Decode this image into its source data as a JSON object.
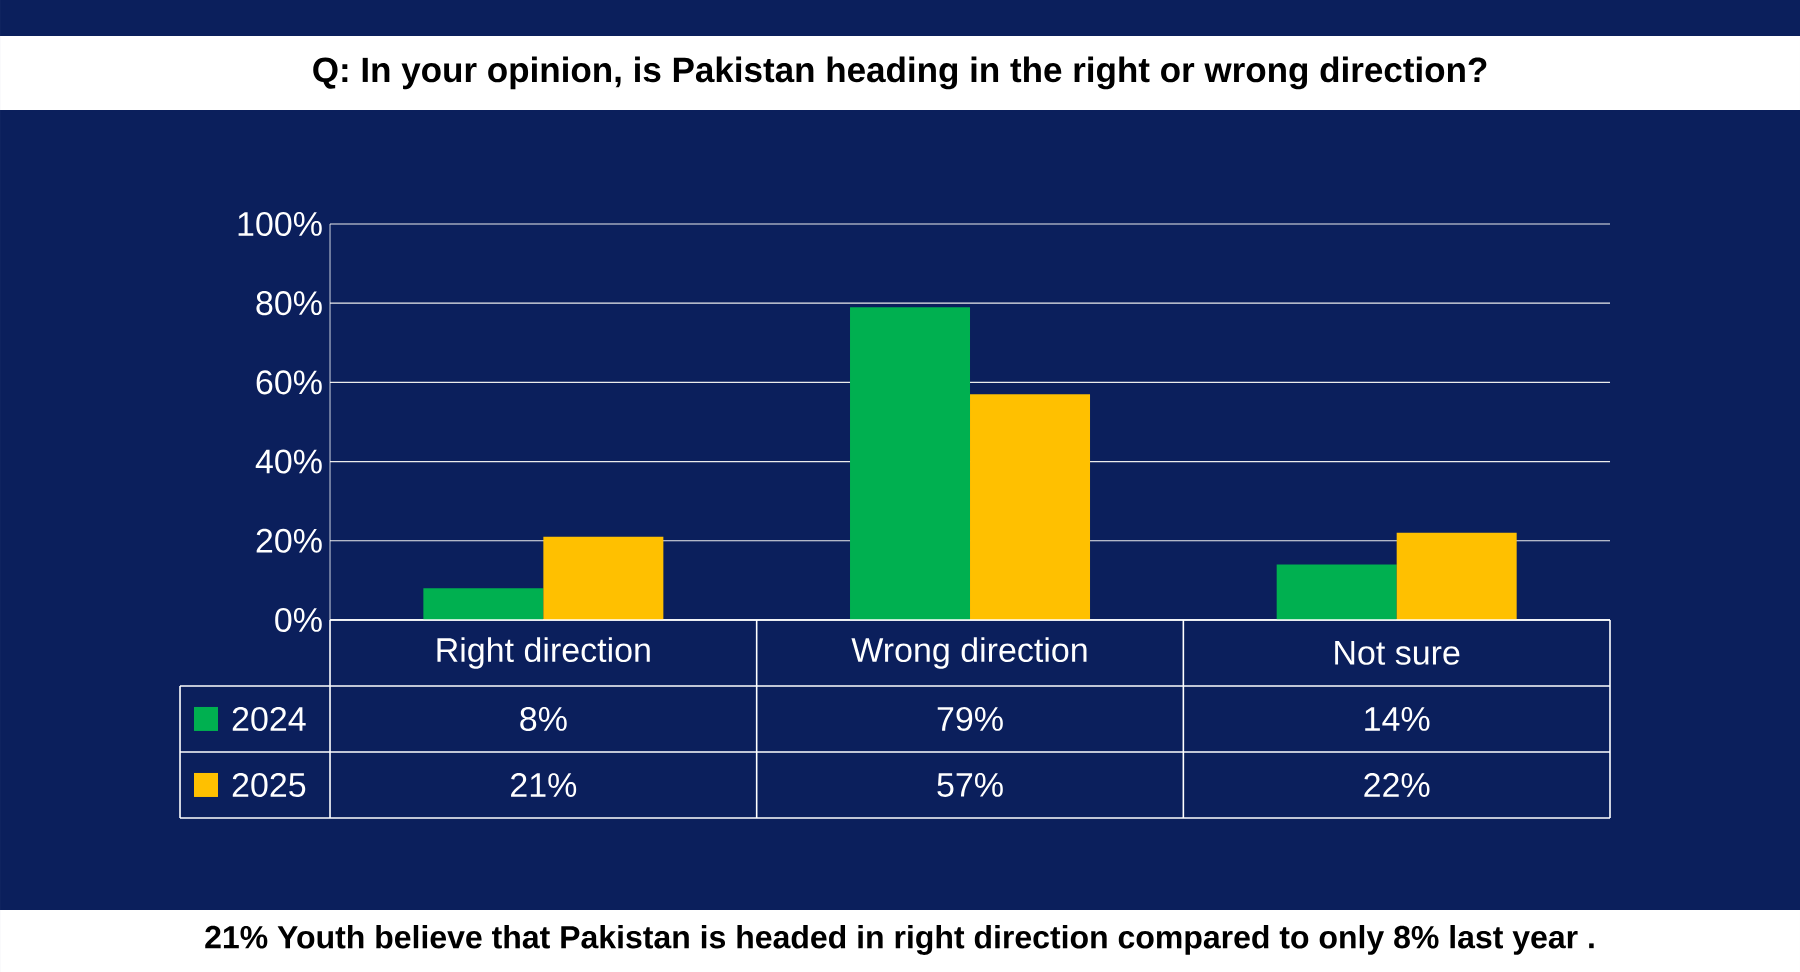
{
  "chart_data": {
    "type": "bar",
    "title": "Q: In your opinion, is Pakistan heading in the right or wrong direction?",
    "categories": [
      "Right direction",
      "Wrong direction",
      "Not sure"
    ],
    "series": [
      {
        "name": "2024",
        "color": "#00b050",
        "values": [
          8,
          79,
          14
        ],
        "value_labels": [
          "8%",
          "79%",
          "14%"
        ]
      },
      {
        "name": "2025",
        "color": "#ffc000",
        "values": [
          21,
          57,
          22
        ],
        "value_labels": [
          "21%",
          "57%",
          "22%"
        ]
      }
    ],
    "ylim": [
      0,
      100
    ],
    "yticks": [
      {
        "value": 0,
        "label": "0%"
      },
      {
        "value": 20,
        "label": "20%"
      },
      {
        "value": 40,
        "label": "40%"
      },
      {
        "value": 60,
        "label": "60%"
      },
      {
        "value": 80,
        "label": "80%"
      },
      {
        "value": 100,
        "label": "100%"
      }
    ],
    "grid": "y",
    "legend": "bottom left",
    "annotations": [
      "21% Youth believe that Pakistan is headed in right direction compared to only 8% last year ."
    ]
  }
}
